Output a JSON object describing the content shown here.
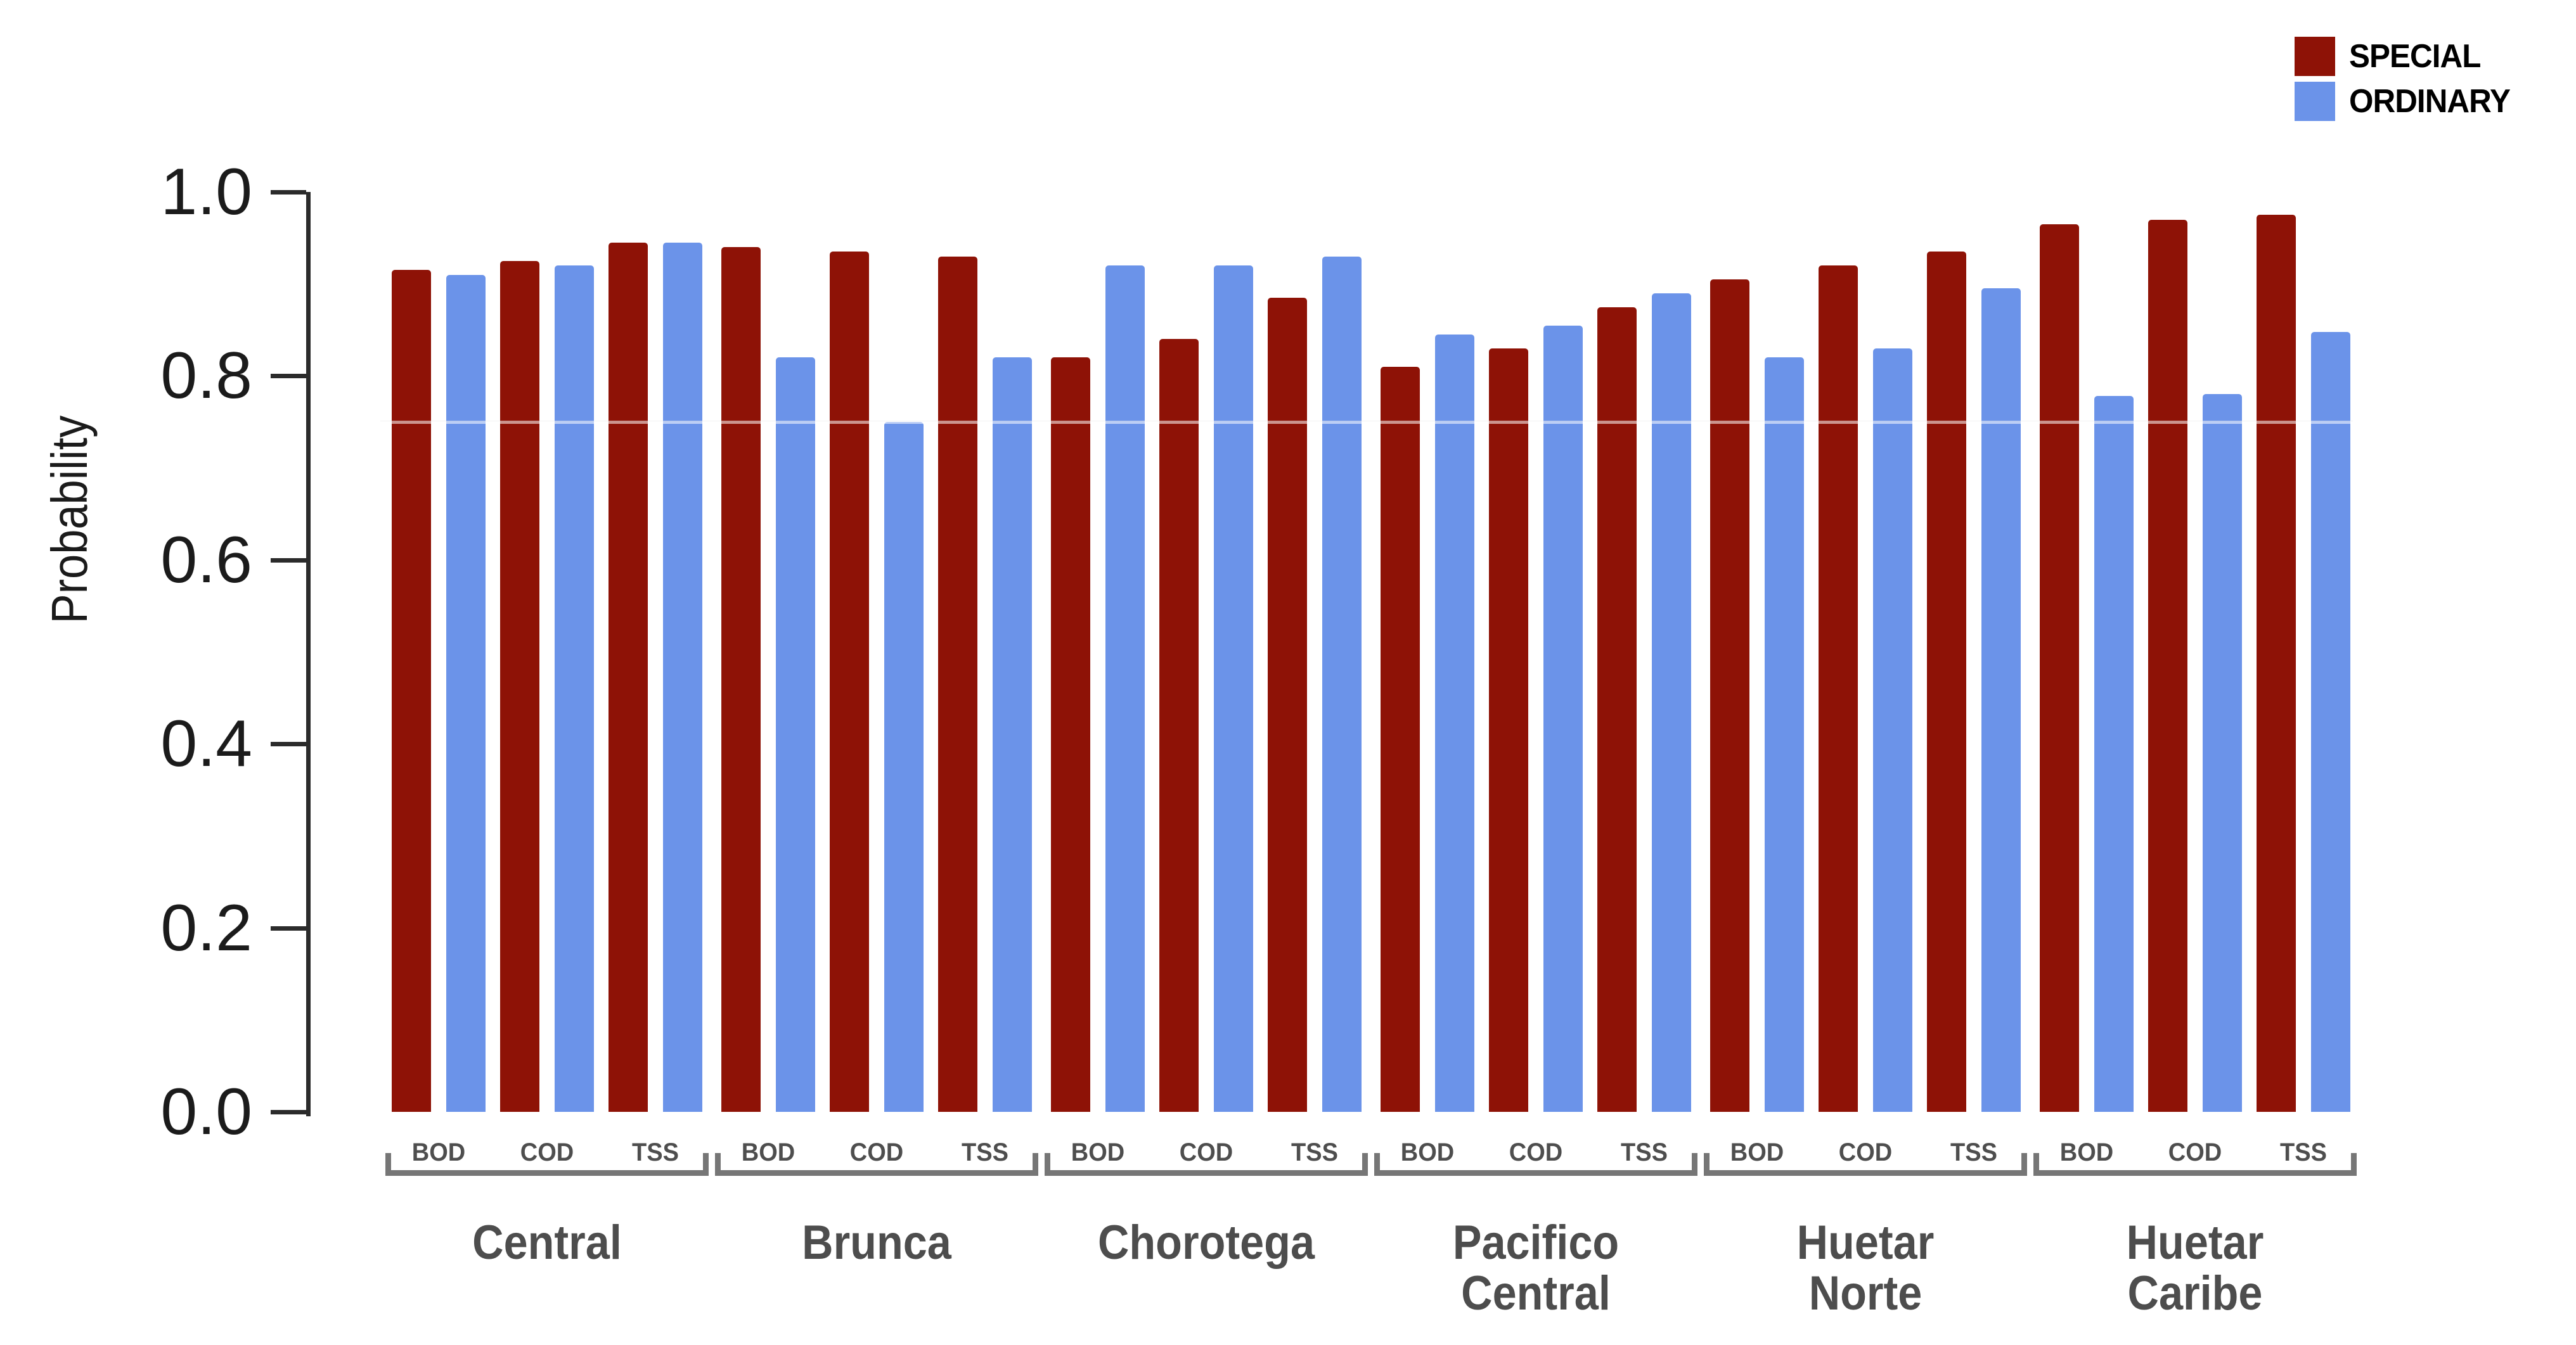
{
  "y_axis": {
    "title": "Probability",
    "tick_labels": [
      "1.0",
      "0.8",
      "0.6",
      "0.4",
      "0.2",
      "0.0"
    ],
    "tick_values": [
      1.0,
      0.8,
      0.6,
      0.4,
      0.2,
      0.0
    ]
  },
  "legend": {
    "items": [
      {
        "label": "SPECIAL",
        "color": "#8e1206"
      },
      {
        "label": "ORDINARY",
        "color": "#6b93e9"
      }
    ]
  },
  "colors": {
    "special": "#8e1206",
    "ordinary": "#6b93e9",
    "axis": "#2b2b2b",
    "bracket": "#767676",
    "label_gray": "#4d4d4d"
  },
  "chart_data": {
    "type": "bar",
    "title": "",
    "xlabel": "",
    "ylabel": "Probability",
    "ylim": [
      0,
      1
    ],
    "yticks": [
      0.0,
      0.2,
      0.4,
      0.6,
      0.8,
      1.0
    ],
    "grid": false,
    "reference_line_y": 0.75,
    "legend_position": "top-right",
    "series_names": [
      "SPECIAL",
      "ORDINARY"
    ],
    "analytes": [
      "BOD",
      "COD",
      "TSS"
    ],
    "groups": [
      {
        "region": "Central",
        "region_lines": [
          "Central"
        ],
        "values": {
          "BOD": {
            "SPECIAL": 0.915,
            "ORDINARY": 0.91
          },
          "COD": {
            "SPECIAL": 0.925,
            "ORDINARY": 0.92
          },
          "TSS": {
            "SPECIAL": 0.945,
            "ORDINARY": 0.945
          }
        }
      },
      {
        "region": "Brunca",
        "region_lines": [
          "Brunca"
        ],
        "values": {
          "BOD": {
            "SPECIAL": 0.94,
            "ORDINARY": 0.82
          },
          "COD": {
            "SPECIAL": 0.935,
            "ORDINARY": 0.75
          },
          "TSS": {
            "SPECIAL": 0.93,
            "ORDINARY": 0.82
          }
        }
      },
      {
        "region": "Chorotega",
        "region_lines": [
          "Chorotega"
        ],
        "values": {
          "BOD": {
            "SPECIAL": 0.82,
            "ORDINARY": 0.92
          },
          "COD": {
            "SPECIAL": 0.84,
            "ORDINARY": 0.92
          },
          "TSS": {
            "SPECIAL": 0.885,
            "ORDINARY": 0.93
          }
        }
      },
      {
        "region": "Pacifico Central",
        "region_lines": [
          "Pacifico",
          "Central"
        ],
        "values": {
          "BOD": {
            "SPECIAL": 0.81,
            "ORDINARY": 0.845
          },
          "COD": {
            "SPECIAL": 0.83,
            "ORDINARY": 0.855
          },
          "TSS": {
            "SPECIAL": 0.875,
            "ORDINARY": 0.89
          }
        }
      },
      {
        "region": "Huetar Norte",
        "region_lines": [
          "Huetar",
          "Norte"
        ],
        "values": {
          "BOD": {
            "SPECIAL": 0.905,
            "ORDINARY": 0.82
          },
          "COD": {
            "SPECIAL": 0.92,
            "ORDINARY": 0.83
          },
          "TSS": {
            "SPECIAL": 0.935,
            "ORDINARY": 0.895
          }
        }
      },
      {
        "region": "Huetar Caribe",
        "region_lines": [
          "Huetar",
          "Caribe"
        ],
        "values": {
          "BOD": {
            "SPECIAL": 0.965,
            "ORDINARY": 0.778
          },
          "COD": {
            "SPECIAL": 0.97,
            "ORDINARY": 0.78
          },
          "TSS": {
            "SPECIAL": 0.975,
            "ORDINARY": 0.848
          }
        }
      }
    ]
  }
}
